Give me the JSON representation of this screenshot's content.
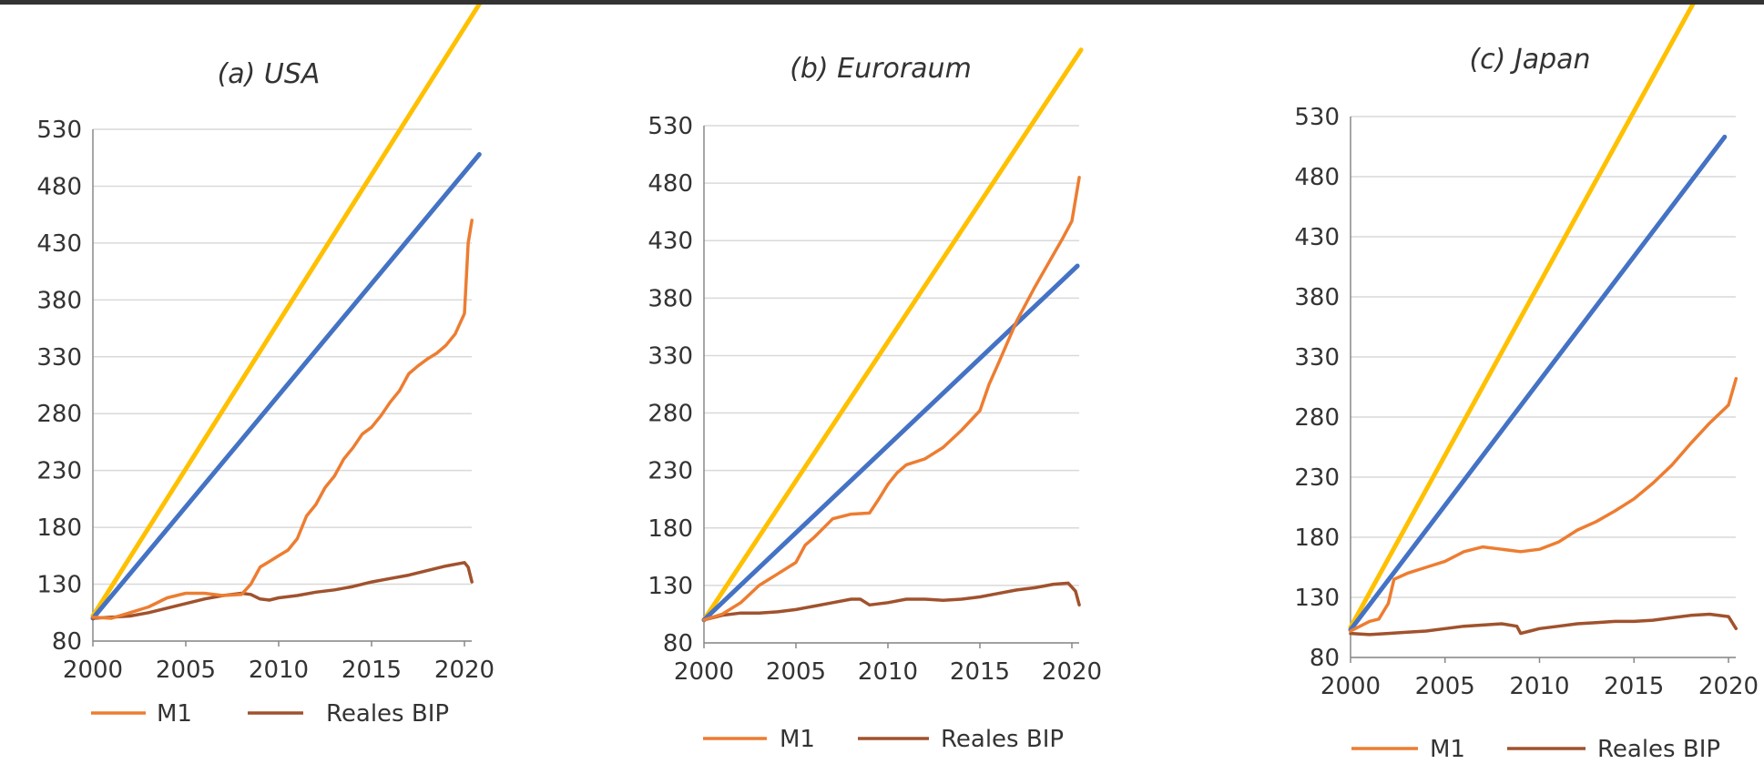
{
  "chart_data": [
    {
      "type": "line",
      "title": "(a) USA",
      "xlim": [
        2000,
        2020
      ],
      "ylim": [
        80,
        530
      ],
      "x_ticks": [
        "2000",
        "2005",
        "2010",
        "2015",
        "2020"
      ],
      "y_ticks": [
        "80",
        "130",
        "180",
        "230",
        "280",
        "330",
        "380",
        "430",
        "480",
        "530"
      ],
      "grid": "horizontal",
      "legend_placement": "bottom",
      "series": [
        {
          "name": "M1",
          "color": "#ED7D31",
          "x": [
            2000,
            2001,
            2002,
            2003,
            2004,
            2005,
            2006,
            2007,
            2008,
            2008.5,
            2009,
            2009.5,
            2010,
            2010.5,
            2011,
            2011.5,
            2012,
            2012.5,
            2013,
            2013.5,
            2014,
            2014.5,
            2015,
            2015.5,
            2016,
            2016.5,
            2017,
            2017.5,
            2018,
            2018.5,
            2019,
            2019.5,
            2020,
            2020.2,
            2020.4
          ],
          "values": [
            101,
            100,
            105,
            110,
            118,
            122,
            122,
            120,
            121,
            130,
            145,
            150,
            155,
            160,
            170,
            190,
            200,
            215,
            225,
            240,
            250,
            262,
            268,
            278,
            290,
            300,
            315,
            322,
            328,
            333,
            340,
            350,
            368,
            430,
            450
          ]
        },
        {
          "name": "Reales BIP",
          "color": "#A0522D",
          "x": [
            2000,
            2001,
            2002,
            2003,
            2004,
            2005,
            2006,
            2007,
            2008,
            2008.5,
            2009,
            2009.5,
            2010,
            2011,
            2012,
            2013,
            2014,
            2015,
            2016,
            2017,
            2018,
            2019,
            2020,
            2020.2,
            2020.4
          ],
          "values": [
            100,
            101,
            102,
            105,
            109,
            113,
            117,
            120,
            122,
            121,
            117,
            116,
            118,
            120,
            123,
            125,
            128,
            132,
            135,
            138,
            142,
            146,
            149,
            145,
            132
          ]
        },
        {
          "name": "",
          "color": "#FFC000",
          "x": [
            2000,
            2020.8
          ],
          "values": [
            102,
            640
          ]
        },
        {
          "name": "",
          "color": "#4472C4",
          "x": [
            2000,
            2020.8
          ],
          "values": [
            100,
            508
          ]
        }
      ]
    },
    {
      "type": "line",
      "title": "(b) Euroraum",
      "xlim": [
        2000,
        2020
      ],
      "ylim": [
        80,
        530
      ],
      "x_ticks": [
        "2000",
        "2005",
        "2010",
        "2015",
        "2020"
      ],
      "y_ticks": [
        "80",
        "130",
        "180",
        "230",
        "280",
        "330",
        "380",
        "430",
        "480",
        "530"
      ],
      "grid": "horizontal",
      "legend_placement": "bottom",
      "series": [
        {
          "name": "M1",
          "color": "#ED7D31",
          "x": [
            2000,
            2001,
            2002,
            2003,
            2004,
            2005,
            2005.5,
            2006,
            2006.5,
            2007,
            2008,
            2009,
            2009.5,
            2010,
            2010.5,
            2011,
            2012,
            2013,
            2014,
            2015,
            2015.5,
            2016,
            2017,
            2018,
            2019,
            2019.5,
            2020,
            2020.4
          ],
          "values": [
            100,
            105,
            115,
            130,
            140,
            150,
            165,
            172,
            180,
            188,
            192,
            193,
            205,
            218,
            228,
            235,
            240,
            250,
            265,
            282,
            305,
            323,
            360,
            390,
            418,
            432,
            447,
            485
          ]
        },
        {
          "name": "Reales BIP",
          "color": "#A0522D",
          "x": [
            2000,
            2001,
            2002,
            2003,
            2004,
            2005,
            2006,
            2007,
            2008,
            2008.5,
            2009,
            2010,
            2011,
            2012,
            2013,
            2014,
            2015,
            2016,
            2017,
            2018,
            2019,
            2019.8,
            2020.2,
            2020.4
          ],
          "values": [
            100,
            104,
            106,
            106,
            107,
            109,
            112,
            115,
            118,
            118,
            113,
            115,
            118,
            118,
            117,
            118,
            120,
            123,
            126,
            128,
            131,
            132,
            125,
            113
          ]
        },
        {
          "name": "",
          "color": "#FFC000",
          "x": [
            2000,
            2020.5
          ],
          "values": [
            100,
            596
          ]
        },
        {
          "name": "",
          "color": "#4472C4",
          "x": [
            2000,
            2020.3
          ],
          "values": [
            100,
            408
          ]
        }
      ]
    },
    {
      "type": "line",
      "title": "(c) Japan",
      "xlim": [
        2000,
        2020
      ],
      "ylim": [
        80,
        530
      ],
      "x_ticks": [
        "2000",
        "2005",
        "2010",
        "2015",
        "2020"
      ],
      "y_ticks": [
        "80",
        "130",
        "180",
        "230",
        "280",
        "330",
        "380",
        "430",
        "480",
        "530"
      ],
      "grid": "horizontal",
      "legend_placement": "bottom",
      "series": [
        {
          "name": "M1",
          "color": "#ED7D31",
          "x": [
            2000,
            2001,
            2001.5,
            2002,
            2002.3,
            2003,
            2004,
            2005,
            2006,
            2007,
            2008,
            2009,
            2010,
            2011,
            2012,
            2013,
            2014,
            2015,
            2016,
            2017,
            2018,
            2019,
            2020,
            2020.4
          ],
          "values": [
            102,
            110,
            112,
            125,
            145,
            150,
            155,
            160,
            168,
            172,
            170,
            168,
            170,
            176,
            186,
            193,
            202,
            212,
            225,
            240,
            258,
            275,
            290,
            312
          ]
        },
        {
          "name": "Reales BIP",
          "color": "#A0522D",
          "x": [
            2000,
            2001,
            2002,
            2003,
            2004,
            2005,
            2006,
            2007,
            2008,
            2008.8,
            2009,
            2009.5,
            2010,
            2011,
            2012,
            2013,
            2014,
            2015,
            2016,
            2017,
            2018,
            2019,
            2020,
            2020.4
          ],
          "values": [
            100,
            99,
            100,
            101,
            102,
            104,
            106,
            107,
            108,
            106,
            100,
            102,
            104,
            106,
            108,
            109,
            110,
            110,
            111,
            113,
            115,
            116,
            114,
            104
          ]
        },
        {
          "name": "",
          "color": "#FFC000",
          "x": [
            2000,
            2018.9
          ],
          "values": [
            105,
            646
          ]
        },
        {
          "name": "",
          "color": "#4472C4",
          "x": [
            2000,
            2019.8
          ],
          "values": [
            103,
            513
          ]
        }
      ]
    }
  ]
}
